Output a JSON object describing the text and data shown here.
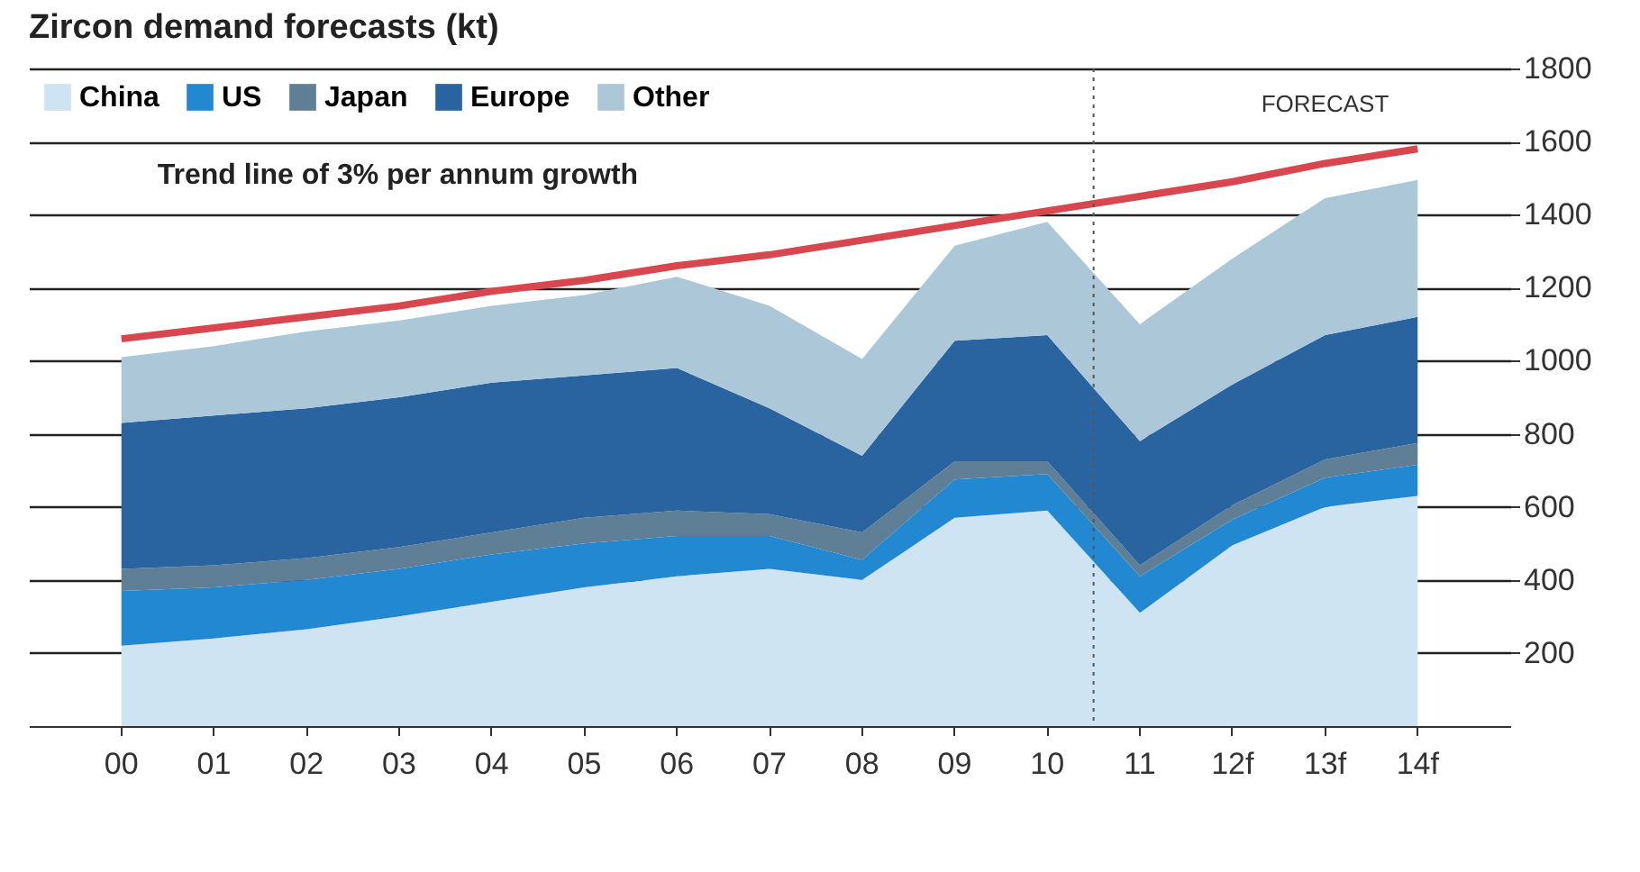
{
  "chart_data": {
    "type": "area",
    "title": "Zircon demand forecasts (kt)",
    "stacked": true,
    "categories": [
      "00",
      "01",
      "02",
      "03",
      "04",
      "05",
      "06",
      "07",
      "08",
      "09",
      "10",
      "11",
      "12f",
      "13f",
      "14f"
    ],
    "series": [
      {
        "name": "China",
        "color": "#cfe4f3",
        "values": [
          220,
          240,
          265,
          300,
          340,
          380,
          410,
          430,
          400,
          570,
          590,
          310,
          495,
          600,
          630
        ]
      },
      {
        "name": "US",
        "color": "#2288d2",
        "values": [
          150,
          140,
          135,
          130,
          130,
          120,
          110,
          90,
          55,
          105,
          100,
          100,
          70,
          80,
          85
        ]
      },
      {
        "name": "Japan",
        "color": "#5f7f96",
        "values": [
          60,
          60,
          60,
          60,
          60,
          70,
          70,
          60,
          75,
          50,
          35,
          30,
          40,
          50,
          60
        ]
      },
      {
        "name": "Europe",
        "color": "#2a64a0",
        "values": [
          400,
          410,
          410,
          410,
          410,
          390,
          390,
          290,
          210,
          330,
          345,
          340,
          330,
          340,
          345
        ]
      },
      {
        "name": "Other",
        "color": "#abc7d8",
        "values": [
          180,
          190,
          210,
          210,
          210,
          220,
          250,
          280,
          265,
          260,
          310,
          320,
          345,
          375,
          375
        ]
      },
      {
        "type": "line",
        "color": "#d9474e",
        "values": [
          1060,
          1090,
          1120,
          1150,
          1190,
          1220,
          1260,
          1290,
          1330,
          1370,
          1410,
          1450,
          1490,
          1540,
          1580
        ]
      }
    ],
    "ylim": [
      0,
      1800
    ],
    "yticks": [
      200,
      400,
      600,
      800,
      1000,
      1200,
      1400,
      1600,
      1800
    ],
    "grid": "y",
    "legend": "top left",
    "ref_lines": [
      {
        "axis": "x",
        "value": "11",
        "line_style": "dotted",
        "color": "#555555"
      }
    ],
    "annotations": [
      "Trend line of 3% per annum growth",
      "FORECAST"
    ]
  }
}
